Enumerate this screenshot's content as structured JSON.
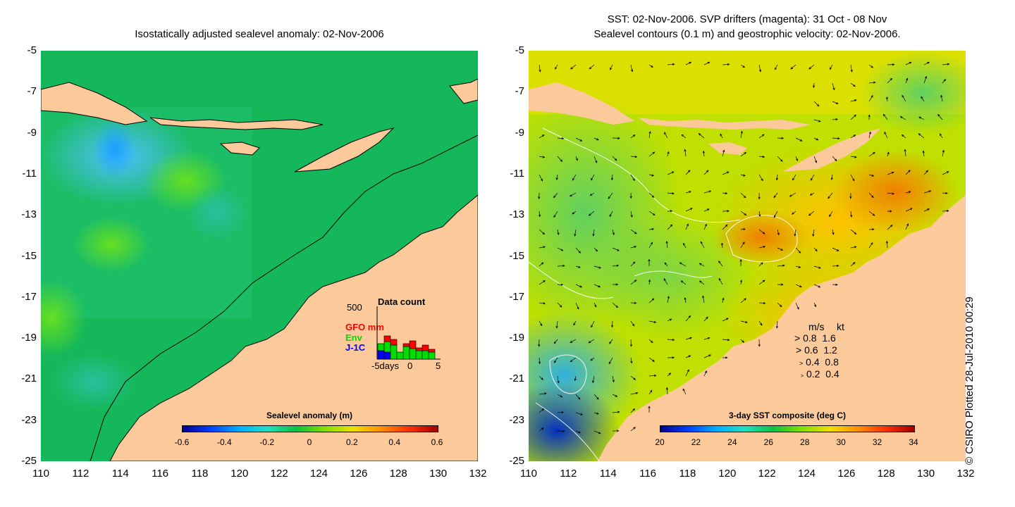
{
  "left_panel": {
    "title": "Isostatically adjusted sealevel anomaly: 02-Nov-2006",
    "colorbar": {
      "label": "Sealevel anomaly (m)",
      "ticks": [
        "-0.6",
        "-0.4",
        "-0.2",
        "0",
        "0.2",
        "0.4",
        "0.6"
      ],
      "min": -0.6,
      "max": 0.6
    },
    "data_count": {
      "title": "Data count",
      "ymax_label": "500",
      "series": [
        {
          "name": "GFO",
          "color": "#ff0000"
        },
        {
          "name": "Env",
          "color": "#00dd00"
        },
        {
          "name": "J-1C",
          "color": "#0000ff"
        }
      ],
      "unit_label": "mm",
      "x_labels": [
        "-5days",
        "0",
        "5"
      ]
    }
  },
  "right_panel": {
    "title_line1": "SST: 02-Nov-2006. SVP drifters (magenta): 31 Oct - 08 Nov",
    "title_line2": "Sealevel contours (0.1 m) and geostrophic velocity: 02-Nov-2006.",
    "colorbar": {
      "label": "3-day SST composite (deg C)",
      "ticks": [
        "20",
        "22",
        "24",
        "26",
        "28",
        "30",
        "32",
        "34"
      ],
      "min": 20,
      "max": 34
    },
    "velocity_legend": {
      "header": [
        "m/s",
        "kt"
      ],
      "rows": [
        [
          "0.8",
          "1.6"
        ],
        [
          "0.6",
          "1.2"
        ],
        [
          "0.4",
          "0.8"
        ],
        [
          "0.2",
          "0.4"
        ]
      ]
    }
  },
  "axes": {
    "y_labels": [
      "-5",
      "-7",
      "-9",
      "-11",
      "-13",
      "-15",
      "-17",
      "-19",
      "-21",
      "-23",
      "-25"
    ],
    "x_labels": [
      "110",
      "112",
      "114",
      "116",
      "118",
      "120",
      "122",
      "124",
      "126",
      "128",
      "130",
      "132"
    ],
    "lon_range": [
      110,
      132
    ],
    "lat_range": [
      -25,
      -5
    ]
  },
  "copyright": "© CSIRO Plotted 28-Jul-2010 00:29",
  "colors": {
    "land": "#fbc99a",
    "sla_background": "#14b85a",
    "sst_background": "#bfe000"
  }
}
